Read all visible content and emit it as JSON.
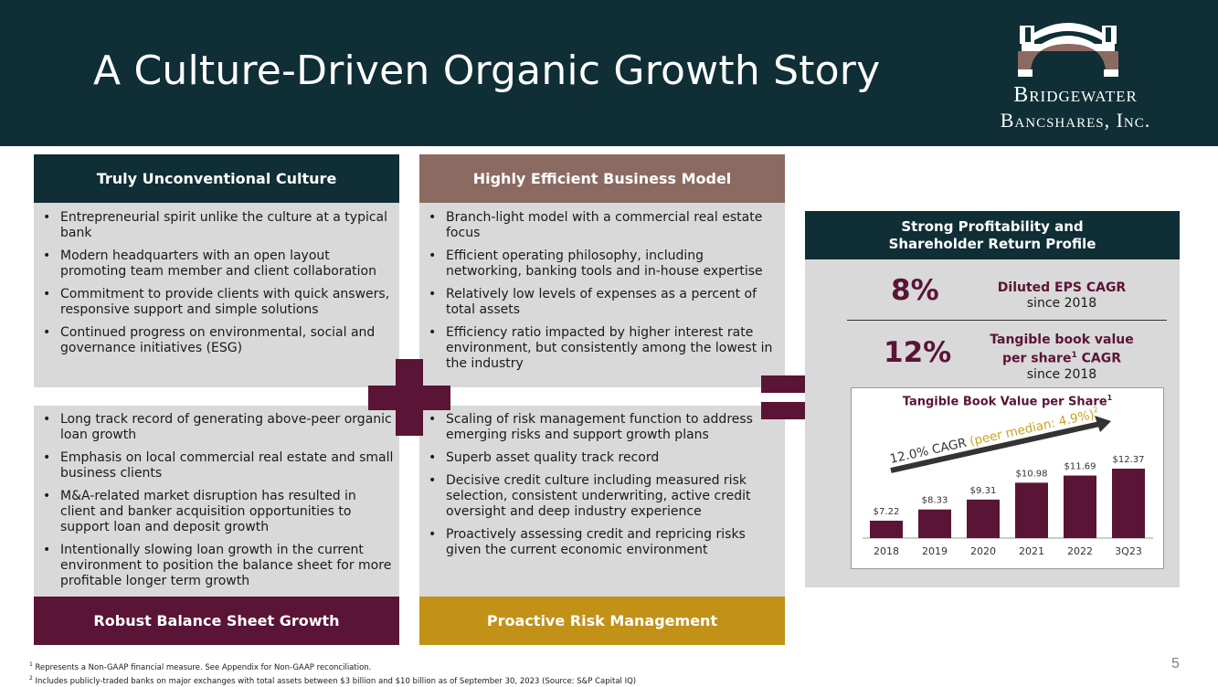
{
  "header": {
    "title": "A Culture-Driven Organic Growth Story",
    "logo_line1": "Bridgewater",
    "logo_line2": "Bancshares, Inc."
  },
  "culture": {
    "heading": "Truly Unconventional Culture",
    "items": [
      "Entrepreneurial spirit unlike the culture at a typical bank",
      "Modern headquarters with an open layout promoting team member and client collaboration",
      "Commitment to provide clients with quick answers, responsive support and simple solutions",
      "Continued progress on environmental, social and governance initiatives (ESG)"
    ]
  },
  "efficient": {
    "heading": "Highly Efficient Business Model",
    "items": [
      "Branch-light model with a commercial real estate focus",
      "Efficient operating philosophy, including networking, banking tools and in-house expertise",
      "Relatively low levels of expenses as a percent of total assets",
      "Efficiency ratio impacted by higher interest rate environment, but consistently among the lowest in the industry"
    ]
  },
  "balance": {
    "heading": "Robust Balance Sheet Growth",
    "items": [
      "Long track record of generating above-peer organic loan growth",
      "Emphasis on local commercial real estate and small business clients",
      "M&A-related market disruption has resulted in client and banker acquisition opportunities to support loan and deposit growth",
      "Intentionally slowing loan growth in the current environment to position the balance sheet for more profitable longer term growth"
    ]
  },
  "risk": {
    "heading": "Proactive Risk Management",
    "items": [
      "Scaling of risk management function to address emerging risks and support growth plans",
      "Superb asset quality track record",
      "Decisive credit culture including measured risk selection, consistent underwriting, active credit oversight and deep industry experience",
      "Proactively assessing credit and repricing risks given the current economic environment"
    ]
  },
  "profitability": {
    "heading_line1": "Strong Profitability and",
    "heading_line2": "Shareholder Return Profile",
    "eps_value": "8%",
    "eps_label": "Diluted EPS CAGR",
    "eps_since": "since 2018",
    "tbv_value": "12%",
    "tbv_label_line1": "Tangible book value",
    "tbv_label_line2": "per share",
    "tbv_label_sup": "1",
    "tbv_label_cagr": " CAGR",
    "tbv_since": "since 2018"
  },
  "chart_data": {
    "type": "bar",
    "title": "Tangible Book Value per Share",
    "title_sup": "1",
    "categories": [
      "2018",
      "2019",
      "2020",
      "2021",
      "2022",
      "3Q23"
    ],
    "values": [
      7.22,
      8.33,
      9.31,
      10.98,
      11.69,
      12.37
    ],
    "value_labels": [
      "$7.22",
      "$8.33",
      "$9.31",
      "$10.98",
      "$11.69",
      "$12.37"
    ],
    "annotation": "12.0% CAGR",
    "annotation_peer": "(peer median: 4.9%)",
    "annotation_sup": "2",
    "bar_color": "#5a1436",
    "peer_color": "#c9a227",
    "ylim": [
      0,
      13
    ]
  },
  "footnotes": {
    "note1": "Represents a Non-GAAP financial measure. See Appendix for Non-GAAP reconciliation.",
    "note2": "Includes publicly-traded banks on major exchanges with total assets between $3 billion and $10 billion as of September 30, 2023 (Source: S&P Capital IQ)"
  },
  "page_number": "5",
  "colors": {
    "navy": "#0f2e35",
    "mauve": "#8b6a62",
    "maroon": "#5a1436",
    "gold": "#c29118",
    "panel": "#d9d9d9"
  }
}
